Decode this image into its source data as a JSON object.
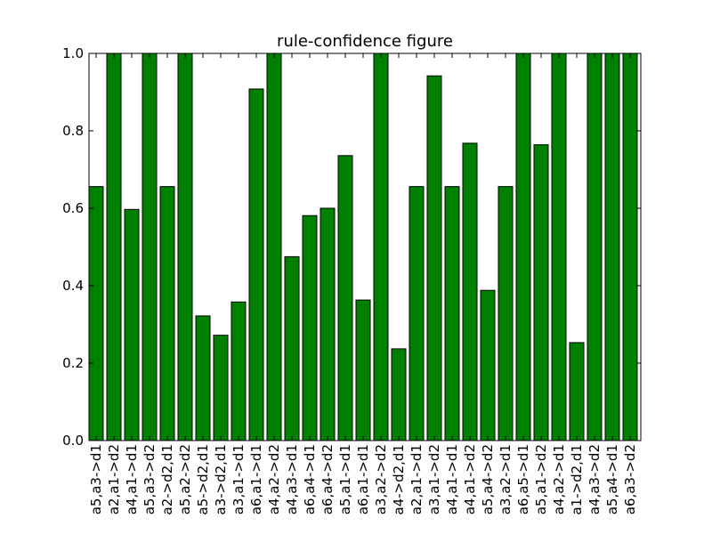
{
  "chart_data": {
    "type": "bar",
    "title": "rule-confidence figure",
    "xlabel": "",
    "ylabel": "",
    "ylim": [
      0,
      1.0
    ],
    "yticks": [
      "0.0",
      "0.2",
      "0.4",
      "0.6",
      "0.8",
      "1.0"
    ],
    "grid": false,
    "bar_color": "#008000",
    "categories": [
      "a5,a3->d1",
      "a2,a1->d2",
      "a4,a1->d1",
      "a5,a3->d2",
      "a2->d2,d1",
      "a5,a2->d2",
      "a5->d2,d1",
      "a3->d2,d1",
      "a3,a1->d1",
      "a6,a1->d1",
      "a4,a2->d2",
      "a4,a3->d1",
      "a6,a4->d1",
      "a6,a4->d2",
      "a5,a1->d1",
      "a6,a1->d1",
      "a3,a2->d2",
      "a4->d2,d1",
      "a2,a1->d1",
      "a3,a1->d2",
      "a4,a1->d1",
      "a4,a1->d2",
      "a5,a4->d2",
      "a3,a2->d1",
      "a6,a5->d1",
      "a5,a1->d2",
      "a4,a2->d1",
      "a1->d2,d1",
      "a4,a3->d2",
      "a5,a4->d1",
      "a6,a3->d2"
    ],
    "values": [
      0.656,
      1.0,
      0.597,
      1.0,
      0.656,
      1.0,
      0.322,
      0.272,
      0.358,
      0.908,
      1.0,
      0.475,
      0.581,
      0.6,
      0.736,
      0.363,
      1.0,
      0.237,
      0.656,
      0.942,
      0.656,
      0.768,
      0.388,
      0.656,
      1.0,
      0.764,
      1.0,
      0.253,
      1.0,
      1.0,
      1.0
    ]
  }
}
